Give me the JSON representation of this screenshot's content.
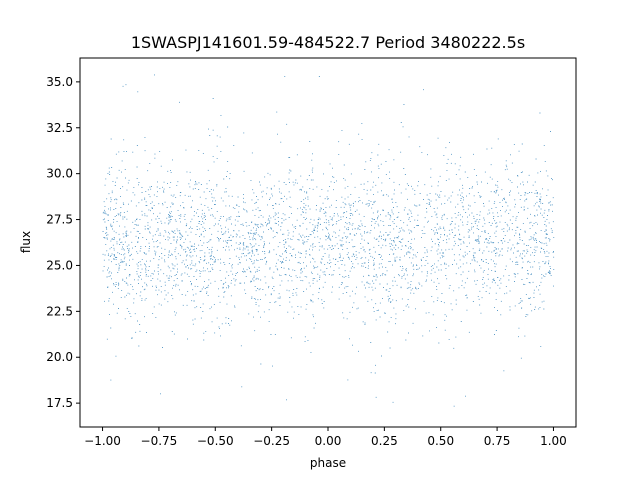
{
  "chart_data": {
    "type": "scatter",
    "title": "1SWASPJ141601.59-484522.7 Period 3480222.5s",
    "xlabel": "phase",
    "ylabel": "flux",
    "xlim": [
      -1.1,
      1.1
    ],
    "ylim": [
      16.2,
      36.3
    ],
    "xticks": [
      -1.0,
      -0.75,
      -0.5,
      -0.25,
      0.0,
      0.25,
      0.5,
      0.75,
      1.0
    ],
    "xtick_labels": [
      "−1.00",
      "−0.75",
      "−0.50",
      "−0.25",
      "0.00",
      "0.25",
      "0.50",
      "0.75",
      "1.00"
    ],
    "yticks": [
      17.5,
      20.0,
      22.5,
      25.0,
      27.5,
      30.0,
      32.5,
      35.0
    ],
    "ytick_labels": [
      "17.5",
      "20.0",
      "22.5",
      "25.0",
      "27.5",
      "30.0",
      "32.5",
      "35.0"
    ],
    "grid": false,
    "marker_color": "#1f77b4",
    "series": [
      {
        "x_range": [
          -1.0,
          1.0
        ],
        "core_flux_range": [
          22.0,
          30.5
        ],
        "scatter_flux_range": [
          17.0,
          35.8
        ],
        "median_flux": 26.3,
        "approx_point_count": 40000
      }
    ]
  }
}
